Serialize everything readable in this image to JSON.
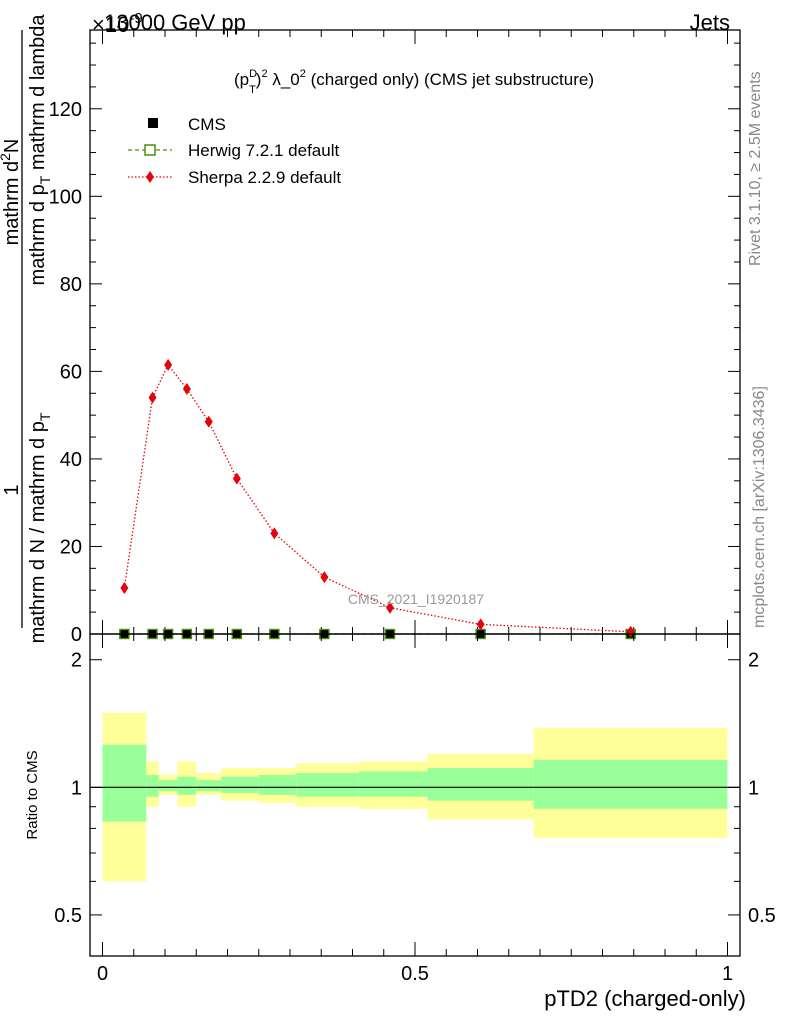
{
  "header": {
    "left": "13000 GeV pp",
    "right": "Jets",
    "exponent": "×10",
    "exponent_power": "-9"
  },
  "side_text": {
    "rivet": "Rivet 3.1.10, ≥ 2.5M events",
    "mcplots": "mcplots.cern.ch [arXiv:1306.3436]"
  },
  "chart_data": [
    {
      "type": "scatter",
      "title": "(p_T^D)^2 λ_0^2 (charged only) (CMS jet substructure)",
      "title_parts": {
        "a": "(p",
        "sup1": "D",
        "sub1": "T",
        "b": ")",
        "sup2": "2",
        "c": " λ_0",
        "sup3": "2",
        "d": " (charged only) (CMS jet substructure)"
      },
      "ylabel_num": "mathrm d²N",
      "ylabel_num_parts": {
        "a": "mathrm d",
        "sup": "2",
        "b": "N"
      },
      "ylabel_den": "mathrm d p_T mathrm d lambda",
      "ylabel_den_parts": {
        "a": "mathrm d p",
        "sub": "T",
        "b": " mathrm d lambda"
      },
      "ylabel_prefix_num": "1",
      "ylabel_prefix_den": "mathrm d N / mathrm d p_T",
      "ylabel_prefix_den_parts": {
        "a": "mathrm d N / mathrm d p",
        "sub": "T"
      },
      "ylim": [
        0,
        138
      ],
      "xlim": [
        -0.02,
        1.02
      ],
      "yticks": [
        0,
        20,
        40,
        60,
        80,
        100,
        120
      ],
      "ytick_labels": [
        "0",
        "20",
        "40",
        "60",
        "80",
        "100",
        "120"
      ],
      "grid": false,
      "legend_position": "top-left",
      "watermark": "CMS_2021_I1920187",
      "series": [
        {
          "name": "CMS",
          "marker": "filled-square",
          "color": "#000000",
          "x": [
            0.035,
            0.08,
            0.105,
            0.135,
            0.17,
            0.215,
            0.275,
            0.355,
            0.46,
            0.605,
            0.845
          ],
          "y": [
            0,
            0,
            0,
            0,
            0,
            0,
            0,
            0,
            0,
            0,
            0
          ]
        },
        {
          "name": "Herwig 7.2.1 default",
          "marker": "open-square",
          "line": "dashed",
          "color": "#4a8f0a",
          "x": [
            0.035,
            0.08,
            0.105,
            0.135,
            0.17,
            0.215,
            0.275,
            0.355,
            0.46,
            0.605,
            0.845
          ],
          "y": [
            0,
            0,
            0,
            0,
            0,
            0,
            0,
            0,
            0,
            0,
            0
          ]
        },
        {
          "name": "Sherpa 2.2.9 default",
          "marker": "filled-diamond",
          "line": "dotted",
          "color": "#e8000b",
          "x": [
            0.035,
            0.08,
            0.105,
            0.135,
            0.17,
            0.215,
            0.275,
            0.355,
            0.46,
            0.605,
            0.845
          ],
          "y": [
            10.5,
            54,
            61.5,
            56,
            48.5,
            35.5,
            23,
            13,
            6,
            2.2,
            0.5
          ]
        }
      ]
    },
    {
      "type": "area",
      "ylabel": "Ratio to CMS",
      "xlabel": "pTD2 (charged-only)",
      "xlim": [
        -0.02,
        1.02
      ],
      "ylim": [
        0.4,
        2.3
      ],
      "log_y": true,
      "yticks": [
        0.5,
        1,
        2
      ],
      "ytick_labels": [
        "0.5",
        "1",
        "2"
      ],
      "xticks": [
        0,
        0.5,
        1
      ],
      "xtick_labels": [
        "0",
        "0.5",
        "1"
      ],
      "band_colors": {
        "inner": "#99ff99",
        "outer": "#ffff99"
      },
      "bins": [
        {
          "lo": 0.0,
          "hi": 0.07,
          "in_lo": 0.83,
          "in_hi": 1.26,
          "out_lo": 0.6,
          "out_hi": 1.5
        },
        {
          "lo": 0.07,
          "hi": 0.09,
          "in_lo": 0.95,
          "in_hi": 1.07,
          "out_lo": 0.9,
          "out_hi": 1.15
        },
        {
          "lo": 0.09,
          "hi": 0.12,
          "in_lo": 0.98,
          "in_hi": 1.04,
          "out_lo": 0.96,
          "out_hi": 1.07
        },
        {
          "lo": 0.12,
          "hi": 0.15,
          "in_lo": 0.96,
          "in_hi": 1.06,
          "out_lo": 0.9,
          "out_hi": 1.15
        },
        {
          "lo": 0.15,
          "hi": 0.19,
          "in_lo": 0.98,
          "in_hi": 1.04,
          "out_lo": 0.96,
          "out_hi": 1.08
        },
        {
          "lo": 0.19,
          "hi": 0.25,
          "in_lo": 0.97,
          "in_hi": 1.06,
          "out_lo": 0.93,
          "out_hi": 1.11
        },
        {
          "lo": 0.25,
          "hi": 0.31,
          "in_lo": 0.96,
          "in_hi": 1.07,
          "out_lo": 0.92,
          "out_hi": 1.11
        },
        {
          "lo": 0.31,
          "hi": 0.41,
          "in_lo": 0.95,
          "in_hi": 1.08,
          "out_lo": 0.9,
          "out_hi": 1.14
        },
        {
          "lo": 0.41,
          "hi": 0.52,
          "in_lo": 0.95,
          "in_hi": 1.09,
          "out_lo": 0.89,
          "out_hi": 1.15
        },
        {
          "lo": 0.52,
          "hi": 0.69,
          "in_lo": 0.93,
          "in_hi": 1.11,
          "out_lo": 0.84,
          "out_hi": 1.2
        },
        {
          "lo": 0.69,
          "hi": 1.0,
          "in_lo": 0.89,
          "in_hi": 1.16,
          "out_lo": 0.76,
          "out_hi": 1.38
        }
      ],
      "reference_line": 1
    }
  ]
}
